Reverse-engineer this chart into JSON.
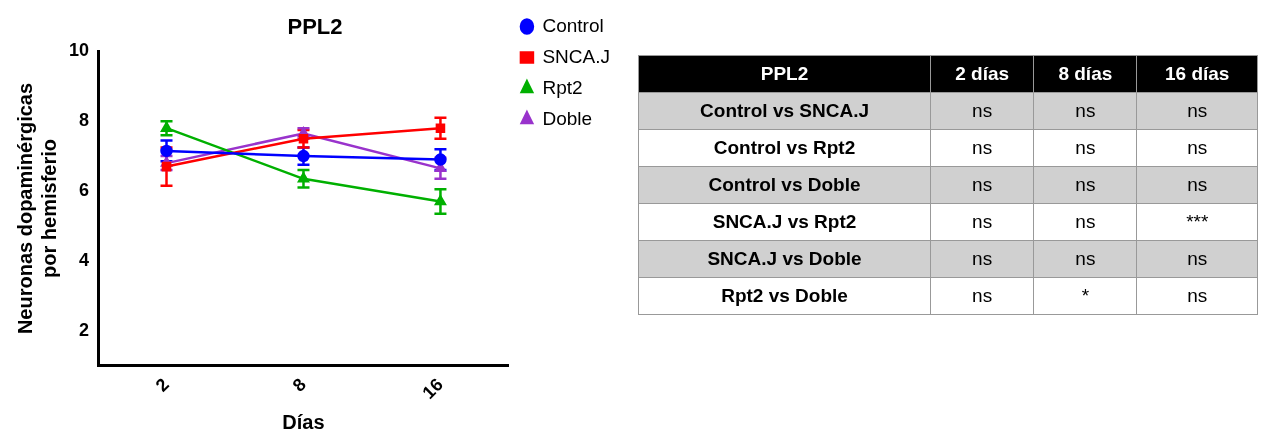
{
  "chart_data": [
    {
      "type": "line",
      "title": "PPL2",
      "xlabel": "Días",
      "ylabel": "Neuronas dopaminérgicas\npor hemisferio",
      "categories": [
        "2",
        "8",
        "16"
      ],
      "ylim": [
        1,
        10
      ],
      "yticks": [
        2,
        4,
        6,
        8,
        10
      ],
      "grid": false,
      "legend": "right",
      "line_style": "solid",
      "series": [
        {
          "name": "Control",
          "color": "#0000ff",
          "marker": "circle",
          "values": [
            7.15,
            7.0,
            6.9
          ],
          "errors": [
            0.3,
            0.25,
            0.3
          ]
        },
        {
          "name": "SNCA.J",
          "color": "#ff0000",
          "marker": "square",
          "values": [
            6.7,
            7.5,
            7.8
          ],
          "errors": [
            0.55,
            0.25,
            0.3
          ]
        },
        {
          "name": "Rpt2",
          "color": "#00b000",
          "marker": "triangle",
          "values": [
            7.8,
            6.35,
            5.7
          ],
          "errors": [
            0.2,
            0.25,
            0.35
          ]
        },
        {
          "name": "Doble",
          "color": "#9933cc",
          "marker": "triangle",
          "values": [
            6.8,
            7.65,
            6.65
          ],
          "errors": [
            0.2,
            0.15,
            0.3
          ]
        }
      ]
    },
    {
      "type": "other",
      "title": "PPL2",
      "annotations": [
        "2 días",
        "8 días",
        "16 días",
        "Control vs SNCA.J",
        "ns",
        "ns",
        "ns",
        "Control vs Rpt2",
        "ns",
        "ns",
        "ns",
        "Control vs Doble",
        "ns",
        "ns",
        "ns",
        "SNCA.J vs Rpt2",
        "ns",
        "ns",
        "***",
        "SNCA.J vs Doble",
        "ns",
        "ns",
        "ns",
        "Rpt2 vs Doble",
        "ns",
        "*",
        "ns"
      ]
    }
  ]
}
